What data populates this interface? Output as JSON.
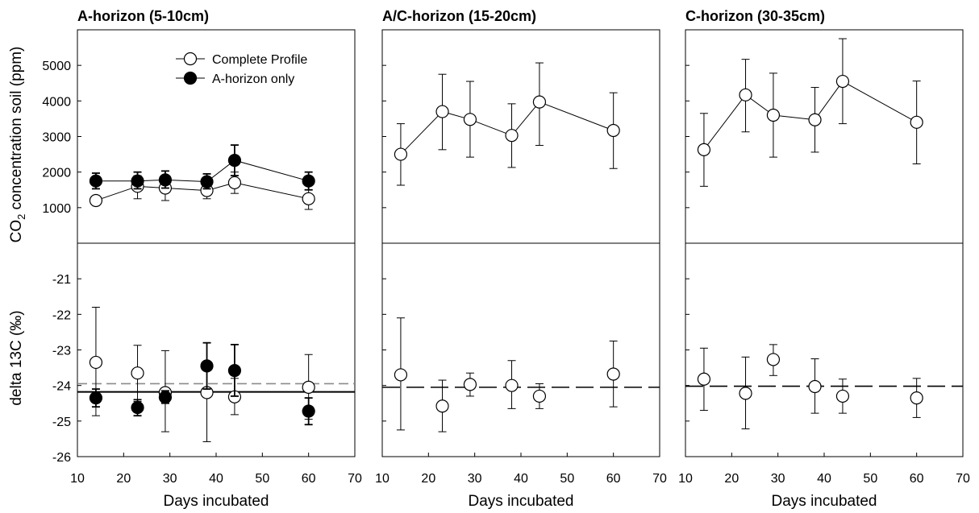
{
  "chart_data": {
    "type": "scatter",
    "xlabel": "Days incubated",
    "xlim": [
      10,
      70
    ],
    "xticks": [
      10,
      20,
      30,
      40,
      50,
      60,
      70
    ],
    "rows": [
      {
        "ylabel": "CO2 concentration soil (ppm)",
        "ylabel_main": "CO",
        "ylabel_sub": "2",
        "ylabel_rest": " concentration soil (ppm)",
        "ylim": [
          0,
          6000
        ],
        "yticks": [
          1000,
          2000,
          3000,
          4000,
          5000
        ]
      },
      {
        "ylabel": "delta 13C (‰)",
        "ylim": [
          -26,
          -20
        ],
        "yticks": [
          -26,
          -25,
          -24,
          -23,
          -22,
          -21
        ]
      }
    ],
    "legend": {
      "position": "top-right",
      "entries": [
        {
          "label": "Complete Profile",
          "marker": "open-circle"
        },
        {
          "label": "A-horizon only",
          "marker": "filled-circle"
        }
      ]
    },
    "panels": [
      {
        "title": "A-horizon (5-10cm)",
        "row": 0,
        "col": 0,
        "show_y_labels": true,
        "show_legend": true,
        "series": [
          {
            "name": "Complete Profile",
            "marker": "open",
            "line": true,
            "x": [
              14,
              23,
              29,
              38,
              44,
              60
            ],
            "y": [
              1200,
              1600,
              1550,
              1480,
              1700,
              1250
            ],
            "err_lo": [
              1100,
              1250,
              1200,
              1250,
              1400,
              950
            ],
            "err_hi": [
              1300,
              1900,
              1850,
              1700,
              2000,
              1500
            ]
          },
          {
            "name": "A-horizon only",
            "marker": "filled",
            "line": true,
            "x": [
              14,
              23,
              29,
              38,
              44,
              60
            ],
            "y": [
              1750,
              1750,
              1780,
              1730,
              2330,
              1750
            ],
            "err_lo": [
              1530,
              1530,
              1550,
              1530,
              1900,
              1500
            ],
            "err_hi": [
              1970,
              2000,
              2030,
              1950,
              2760,
              2000
            ]
          }
        ]
      },
      {
        "title": "A/C-horizon (15-20cm)",
        "row": 0,
        "col": 1,
        "show_y_labels": false,
        "series": [
          {
            "name": "Complete Profile",
            "marker": "open",
            "line": true,
            "x": [
              14,
              23,
              29,
              38,
              44,
              60
            ],
            "y": [
              2500,
              3700,
              3480,
              3030,
              3970,
              3170
            ],
            "err_lo": [
              1630,
              2630,
              2420,
              2130,
              2750,
              2100
            ],
            "err_hi": [
              3360,
              4750,
              4550,
              3920,
              5070,
              4230
            ]
          }
        ]
      },
      {
        "title": "C-horizon (30-35cm)",
        "row": 0,
        "col": 2,
        "show_y_labels": false,
        "series": [
          {
            "name": "Complete Profile",
            "marker": "open",
            "line": true,
            "x": [
              14,
              23,
              29,
              38,
              44,
              60
            ],
            "y": [
              2630,
              4170,
              3600,
              3470,
              4550,
              3400
            ],
            "err_lo": [
              1600,
              3130,
              2420,
              2560,
              3360,
              2230
            ],
            "err_hi": [
              3650,
              5170,
              4780,
              4380,
              5750,
              4560
            ]
          }
        ]
      },
      {
        "row": 1,
        "col": 0,
        "show_y_labels": true,
        "hlines": [
          {
            "y": -23.95,
            "style": "dashed",
            "color": "#8a8a8a"
          },
          {
            "y": -24.18,
            "style": "solid",
            "color": "#000000"
          }
        ],
        "series": [
          {
            "name": "Complete Profile",
            "marker": "open",
            "line": false,
            "x": [
              14,
              23,
              29,
              38,
              44,
              60
            ],
            "y": [
              -23.35,
              -23.65,
              -24.2,
              -24.2,
              -24.32,
              -24.05
            ],
            "err_lo": [
              -24.85,
              -24.45,
              -25.3,
              -25.58,
              -24.82,
              -24.95
            ],
            "err_hi": [
              -21.8,
              -22.87,
              -23.02,
              -23.45,
              -23.8,
              -23.13
            ]
          },
          {
            "name": "A-horizon only",
            "marker": "filled",
            "line": false,
            "x": [
              14,
              23,
              29,
              38,
              44,
              60
            ],
            "y": [
              -24.35,
              -24.62,
              -24.33,
              -23.45,
              -23.58,
              -24.72
            ],
            "err_lo": [
              -24.6,
              -24.85,
              -24.5,
              -24.1,
              -24.3,
              -25.1
            ],
            "err_hi": [
              -24.1,
              -24.4,
              -24.15,
              -22.8,
              -22.85,
              -24.35
            ]
          }
        ]
      },
      {
        "row": 1,
        "col": 1,
        "show_y_labels": false,
        "hlines": [
          {
            "y": -24.05,
            "style": "longdash",
            "color": "#000000"
          }
        ],
        "series": [
          {
            "name": "Complete Profile",
            "marker": "open",
            "line": false,
            "x": [
              14,
              23,
              29,
              38,
              44,
              60
            ],
            "y": [
              -23.7,
              -24.58,
              -23.97,
              -24.0,
              -24.3,
              -23.68
            ],
            "err_lo": [
              -25.25,
              -25.3,
              -24.3,
              -24.65,
              -24.65,
              -24.6
            ],
            "err_hi": [
              -22.1,
              -23.85,
              -23.65,
              -23.3,
              -23.95,
              -22.75
            ]
          }
        ]
      },
      {
        "row": 1,
        "col": 2,
        "show_y_labels": false,
        "hlines": [
          {
            "y": -24.02,
            "style": "longdash",
            "color": "#000000"
          }
        ],
        "series": [
          {
            "name": "Complete Profile",
            "marker": "open",
            "line": false,
            "x": [
              14,
              23,
              29,
              38,
              44,
              60
            ],
            "y": [
              -23.82,
              -24.22,
              -23.27,
              -24.03,
              -24.3,
              -24.35
            ],
            "err_lo": [
              -24.7,
              -25.22,
              -23.72,
              -24.78,
              -24.78,
              -24.9
            ],
            "err_hi": [
              -22.95,
              -23.2,
              -22.85,
              -23.25,
              -23.82,
              -23.8
            ]
          }
        ]
      }
    ]
  }
}
